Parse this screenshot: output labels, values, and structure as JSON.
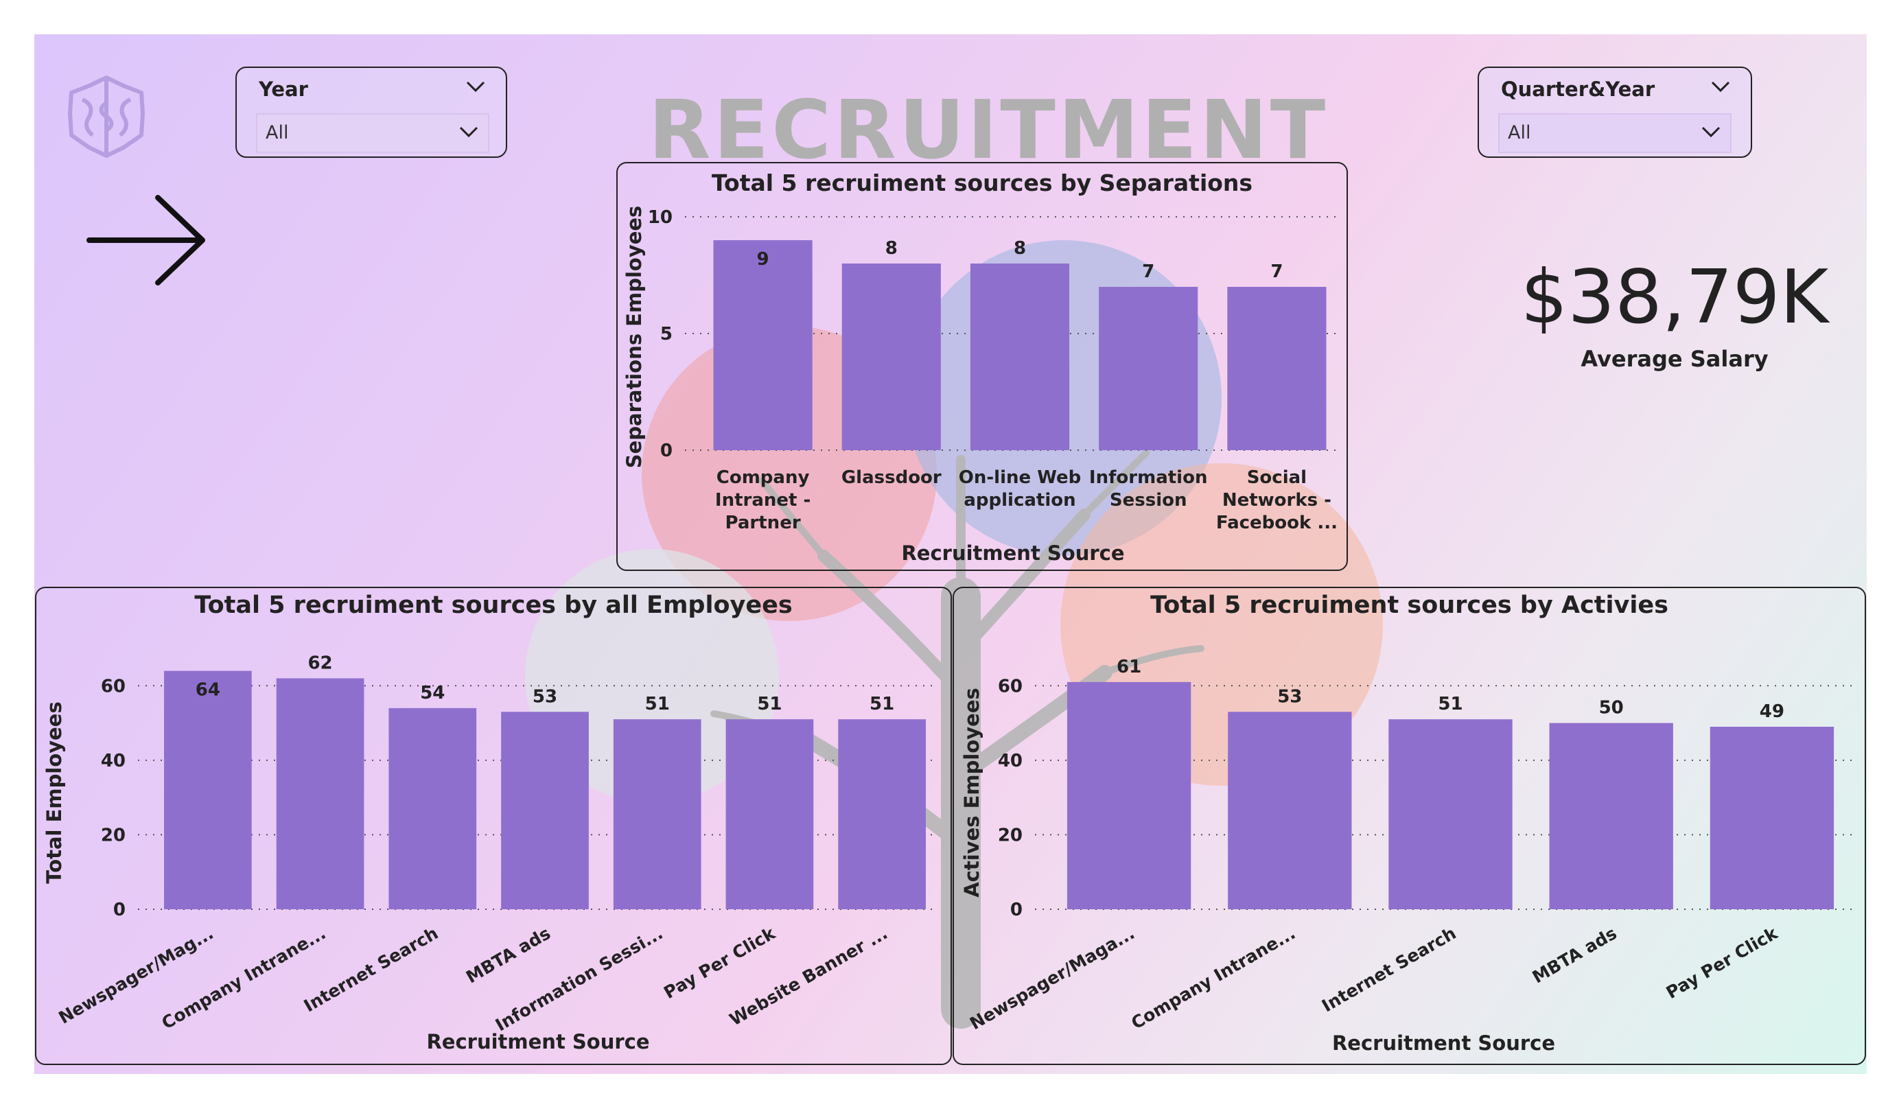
{
  "page": {
    "title_word": "RECRUITMENT",
    "logo_icon": "brain-icon",
    "nav_icon": "arrow-right-icon",
    "palette": {
      "bar": "#8f6fce",
      "text": "#222222",
      "title_watermark": "#b0b0b0"
    }
  },
  "filters": {
    "year": {
      "label": "Year",
      "value": "All",
      "icon": "chevron-down-icon"
    },
    "quarter_year": {
      "label": "Quarter&Year",
      "value": "All",
      "icon": "chevron-down-icon"
    }
  },
  "kpi": {
    "value": "$38,79K",
    "label": "Average Salary"
  },
  "chart_data": [
    {
      "id": "separations",
      "type": "bar",
      "title": "Total 5 recruiment sources by Separations",
      "xlabel": "Recruitment Source",
      "ylabel": "Separations Employees",
      "ylim": [
        0,
        10
      ],
      "yticks": [
        0,
        5,
        10
      ],
      "grid": true,
      "categories": [
        "Company Intranet - Partner",
        "Glassdoor",
        "On-line Web application",
        "Information Session",
        "Social Networks - Facebook ..."
      ],
      "category_lines": [
        [
          "Company",
          "Intranet -",
          "Partner"
        ],
        [
          "Glassdoor"
        ],
        [
          "On-line Web",
          "application"
        ],
        [
          "Information",
          "Session"
        ],
        [
          "Social",
          "Networks -",
          "Facebook ..."
        ]
      ],
      "values": [
        9,
        8,
        8,
        7,
        7
      ]
    },
    {
      "id": "all-employees",
      "type": "bar",
      "title": "Total 5 recruiment sources by all Employees",
      "xlabel": "Recruitment Source",
      "ylabel": "Total Employees",
      "ylim": [
        0,
        70
      ],
      "yticks": [
        0,
        20,
        40,
        60
      ],
      "grid": true,
      "categories": [
        "Newspager/Mag...",
        "Company Intrane...",
        "Internet Search",
        "MBTA ads",
        "Information Sessi...",
        "Pay Per Click",
        "Website Banner ..."
      ],
      "values": [
        64,
        62,
        54,
        53,
        51,
        51,
        51
      ]
    },
    {
      "id": "actives",
      "type": "bar",
      "title": "Total 5 recruiment sources by Activies",
      "xlabel": "Recruitment Source",
      "ylabel": "Actives Employees",
      "ylim": [
        0,
        70
      ],
      "yticks": [
        0,
        20,
        40,
        60
      ],
      "grid": true,
      "categories": [
        "Newspager/Maga...",
        "Company Intrane...",
        "Internet Search",
        "MBTA ads",
        "Pay Per Click"
      ],
      "values": [
        61,
        53,
        51,
        50,
        49
      ]
    }
  ]
}
